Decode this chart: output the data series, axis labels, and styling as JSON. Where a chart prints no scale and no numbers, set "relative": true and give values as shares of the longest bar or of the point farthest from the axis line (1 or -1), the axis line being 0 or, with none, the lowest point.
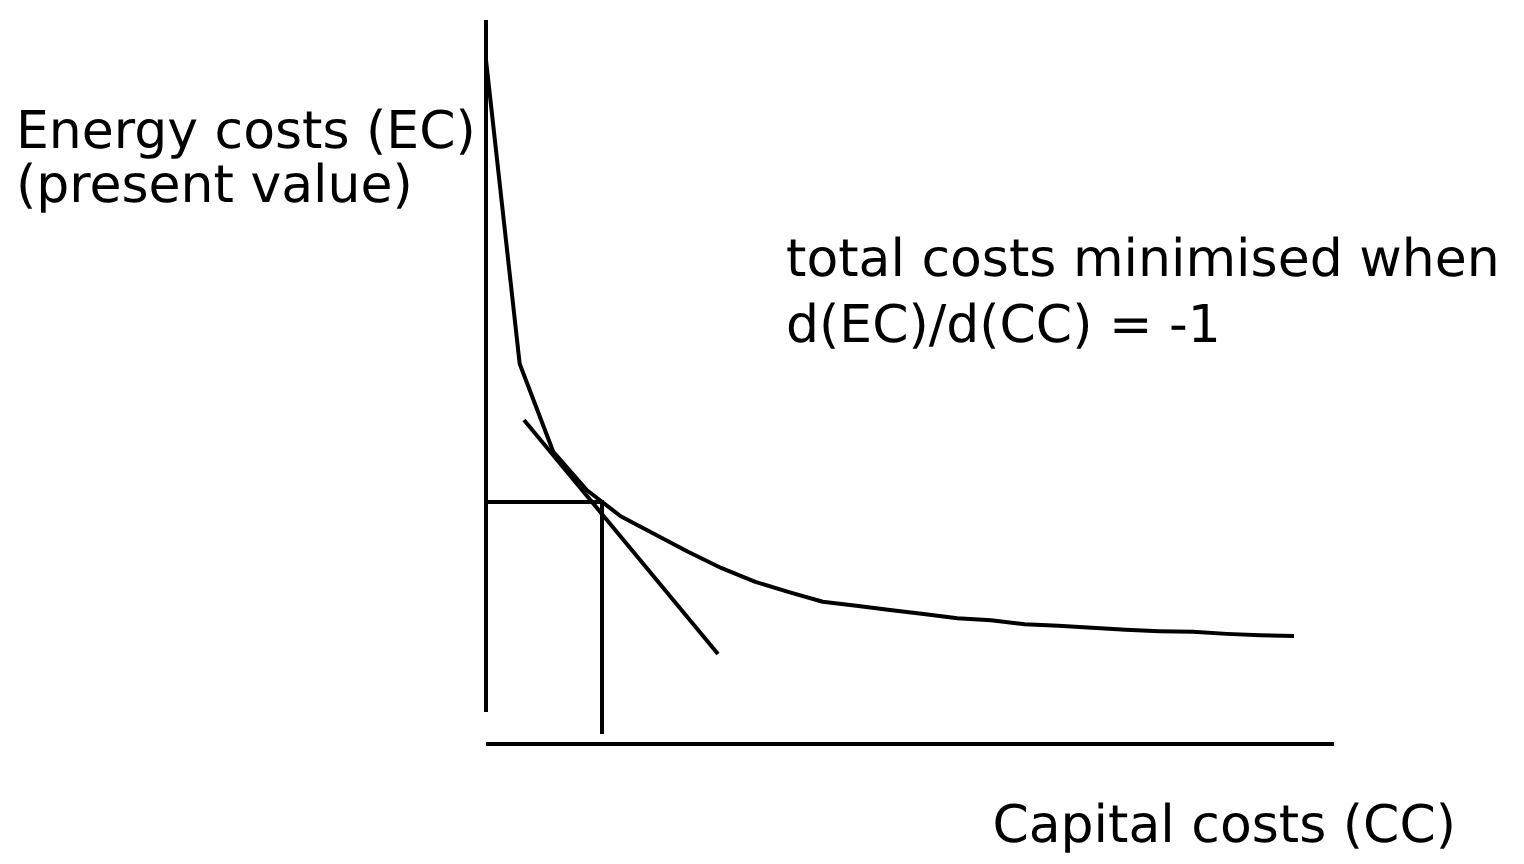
{
  "chart_data": {
    "type": "line",
    "relative": true,
    "xlabel": "Capital costs (CC)",
    "ylabel": "Energy costs (EC)\n(present value)",
    "annotations": [
      "total costs minimised when\nd(EC)/d(CC) = -1"
    ],
    "categories": [
      null,
      null,
      null,
      null,
      null,
      null,
      null,
      null,
      null,
      null,
      null,
      null,
      null,
      null,
      null,
      null,
      null,
      null,
      null,
      null,
      null,
      null,
      null,
      null,
      null
    ],
    "series": [
      {
        "color": "#000000",
        "values": [
          1,
          0.556,
          0.427,
          0.371,
          0.333,
          0.307,
          0.281,
          0.257,
          0.237,
          0.222,
          0.208,
          0.202,
          0.196,
          0.19,
          0.184,
          0.181,
          0.175,
          0.173,
          0.17,
          0.167,
          0.165,
          0.164,
          0.161,
          0.159,
          0.158
        ]
      }
    ]
  }
}
